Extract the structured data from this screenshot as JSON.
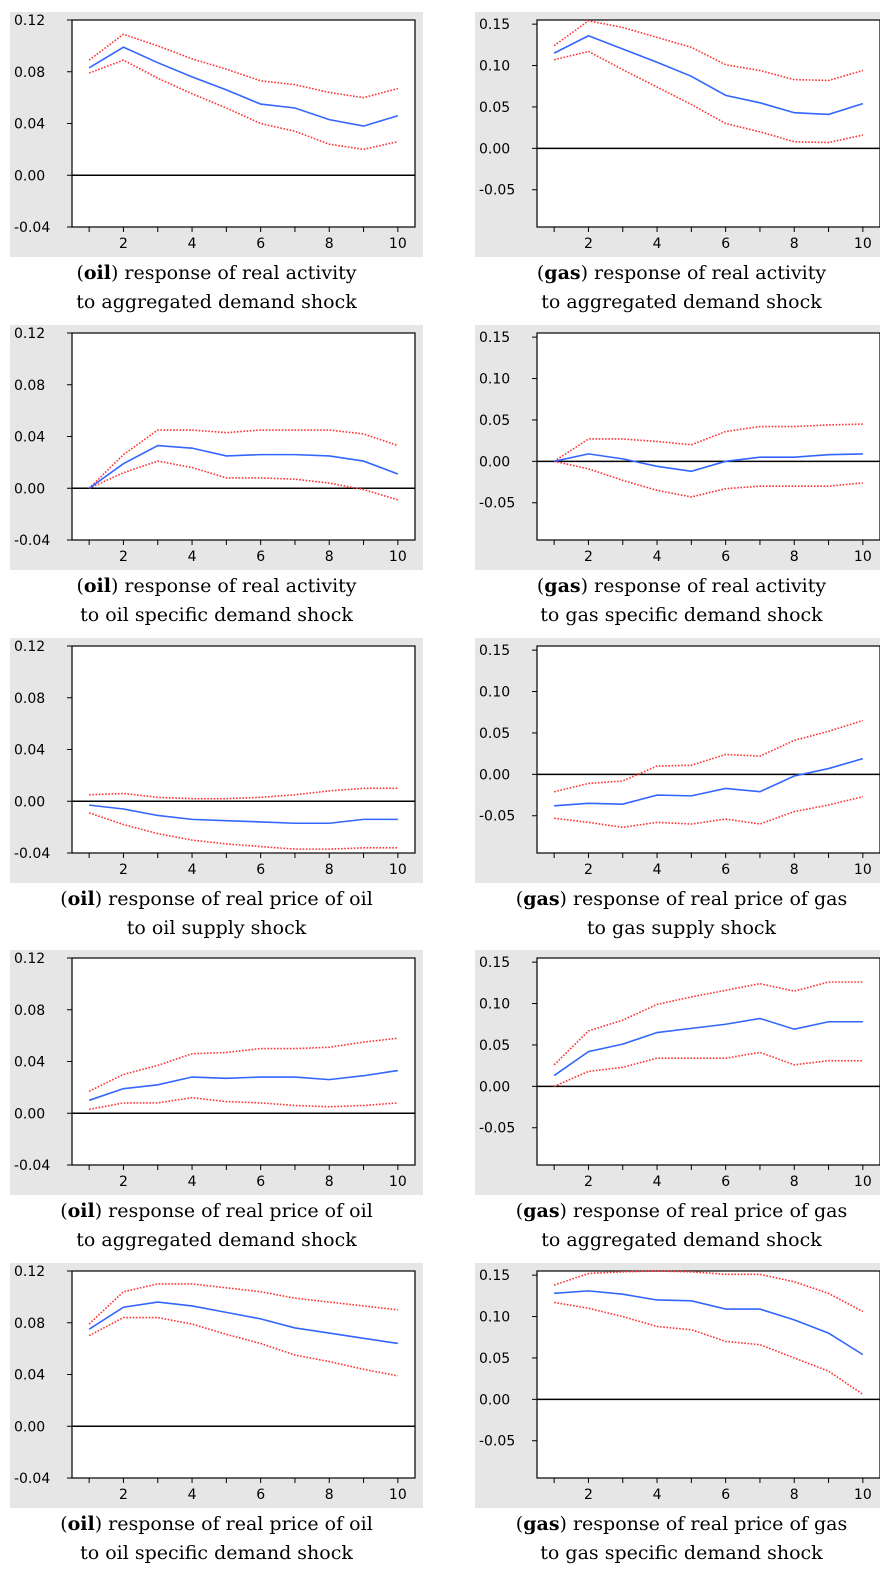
{
  "chart_data": [
    {
      "type": "line",
      "caption": {
        "shock_var": "oil",
        "line1_rest": ") response of real activity",
        "line2": "to aggregated demand shock"
      },
      "x": [
        1,
        2,
        3,
        4,
        5,
        6,
        7,
        8,
        9,
        10
      ],
      "xlim": [
        0.5,
        10.5
      ],
      "xticks": [
        "2",
        "4",
        "6",
        "8",
        "10"
      ],
      "ylim": [
        -0.04,
        0.12
      ],
      "yticks": [
        "0.12",
        "0.08",
        "0.04",
        "0.00",
        "-0.04"
      ],
      "series": [
        {
          "values": [
            0.083,
            0.099,
            0.087,
            0.076,
            0.066,
            0.055,
            0.052,
            0.043,
            0.038,
            0.046
          ],
          "color": "#3366ff",
          "style": "solid"
        },
        {
          "values": [
            0.089,
            0.109,
            0.1,
            0.09,
            0.082,
            0.073,
            0.07,
            0.064,
            0.06,
            0.067
          ],
          "color": "#ff3333",
          "style": "dotted"
        },
        {
          "values": [
            0.079,
            0.089,
            0.075,
            0.063,
            0.052,
            0.04,
            0.034,
            0.024,
            0.02,
            0.026
          ],
          "color": "#ff3333",
          "style": "dotted"
        }
      ]
    },
    {
      "type": "line",
      "caption": {
        "shock_var": "gas",
        "line1_rest": ") response of real activity",
        "line2": "to aggregated demand shock"
      },
      "x": [
        1,
        2,
        3,
        4,
        5,
        6,
        7,
        8,
        9,
        10
      ],
      "xlim": [
        0.5,
        10.5
      ],
      "xticks": [
        "2",
        "4",
        "6",
        "8",
        "10"
      ],
      "ylim": [
        -0.095,
        0.155
      ],
      "yticks": [
        "0.15",
        "0.10",
        "0.05",
        "0.00",
        "-0.05"
      ],
      "series": [
        {
          "values": [
            0.115,
            0.136,
            0.12,
            0.104,
            0.087,
            0.064,
            0.055,
            0.043,
            0.041,
            0.054
          ],
          "color": "#3366ff",
          "style": "solid"
        },
        {
          "values": [
            0.124,
            0.154,
            0.146,
            0.134,
            0.122,
            0.101,
            0.094,
            0.083,
            0.082,
            0.094
          ],
          "color": "#ff3333",
          "style": "dotted"
        },
        {
          "values": [
            0.107,
            0.117,
            0.095,
            0.074,
            0.053,
            0.03,
            0.02,
            0.008,
            0.007,
            0.016
          ],
          "color": "#ff3333",
          "style": "dotted"
        }
      ]
    },
    {
      "type": "line",
      "caption": {
        "shock_var": "oil",
        "line1_rest": ") response of real activity",
        "line2": "to oil specific demand shock"
      },
      "x": [
        1,
        2,
        3,
        4,
        5,
        6,
        7,
        8,
        9,
        10
      ],
      "xlim": [
        0.5,
        10.5
      ],
      "xticks": [
        "2",
        "4",
        "6",
        "8",
        "10"
      ],
      "ylim": [
        -0.04,
        0.12
      ],
      "yticks": [
        "0.12",
        "0.08",
        "0.04",
        "0.00",
        "-0.04"
      ],
      "series": [
        {
          "values": [
            0.0,
            0.019,
            0.033,
            0.031,
            0.025,
            0.026,
            0.026,
            0.025,
            0.021,
            0.011
          ],
          "color": "#3366ff",
          "style": "solid"
        },
        {
          "values": [
            0.0,
            0.026,
            0.045,
            0.045,
            0.043,
            0.045,
            0.045,
            0.045,
            0.042,
            0.033
          ],
          "color": "#ff3333",
          "style": "dotted"
        },
        {
          "values": [
            0.0,
            0.012,
            0.021,
            0.016,
            0.008,
            0.008,
            0.007,
            0.004,
            -0.001,
            -0.009
          ],
          "color": "#ff3333",
          "style": "dotted"
        }
      ]
    },
    {
      "type": "line",
      "caption": {
        "shock_var": "gas",
        "line1_rest": ") response of real activity",
        "line2": "to gas specific demand shock"
      },
      "x": [
        1,
        2,
        3,
        4,
        5,
        6,
        7,
        8,
        9,
        10
      ],
      "xlim": [
        0.5,
        10.5
      ],
      "xticks": [
        "2",
        "4",
        "6",
        "8",
        "10"
      ],
      "ylim": [
        -0.095,
        0.155
      ],
      "yticks": [
        "0.15",
        "0.10",
        "0.05",
        "0.00",
        "-0.05"
      ],
      "series": [
        {
          "values": [
            0.0,
            0.009,
            0.003,
            -0.006,
            -0.012,
            0.0,
            0.005,
            0.005,
            0.008,
            0.009
          ],
          "color": "#3366ff",
          "style": "solid"
        },
        {
          "values": [
            0.0,
            0.027,
            0.027,
            0.024,
            0.02,
            0.036,
            0.042,
            0.042,
            0.044,
            0.045
          ],
          "color": "#ff3333",
          "style": "dotted"
        },
        {
          "values": [
            0.0,
            -0.009,
            -0.023,
            -0.035,
            -0.043,
            -0.033,
            -0.03,
            -0.03,
            -0.03,
            -0.026
          ],
          "color": "#ff3333",
          "style": "dotted"
        }
      ]
    },
    {
      "type": "line",
      "caption": {
        "shock_var": "oil",
        "line1_rest": ") response of real price of oil",
        "line2": "to oil supply shock"
      },
      "x": [
        1,
        2,
        3,
        4,
        5,
        6,
        7,
        8,
        9,
        10
      ],
      "xlim": [
        0.5,
        10.5
      ],
      "xticks": [
        "2",
        "4",
        "6",
        "8",
        "10"
      ],
      "ylim": [
        -0.04,
        0.12
      ],
      "yticks": [
        "0.12",
        "0.08",
        "0.04",
        "0.00",
        "-0.04"
      ],
      "series": [
        {
          "values": [
            -0.003,
            -0.006,
            -0.011,
            -0.014,
            -0.015,
            -0.016,
            -0.017,
            -0.017,
            -0.014,
            -0.014
          ],
          "color": "#3366ff",
          "style": "solid"
        },
        {
          "values": [
            0.005,
            0.006,
            0.003,
            0.002,
            0.002,
            0.003,
            0.005,
            0.008,
            0.01,
            0.01
          ],
          "color": "#ff3333",
          "style": "dotted"
        },
        {
          "values": [
            -0.009,
            -0.018,
            -0.025,
            -0.03,
            -0.033,
            -0.035,
            -0.037,
            -0.037,
            -0.036,
            -0.036
          ],
          "color": "#ff3333",
          "style": "dotted"
        }
      ]
    },
    {
      "type": "line",
      "caption": {
        "shock_var": "gas",
        "line1_rest": ") response of real price of gas",
        "line2": "to gas supply shock"
      },
      "x": [
        1,
        2,
        3,
        4,
        5,
        6,
        7,
        8,
        9,
        10
      ],
      "xlim": [
        0.5,
        10.5
      ],
      "xticks": [
        "2",
        "4",
        "6",
        "8",
        "10"
      ],
      "ylim": [
        -0.095,
        0.155
      ],
      "yticks": [
        "0.15",
        "0.10",
        "0.05",
        "0.00",
        "-0.05"
      ],
      "series": [
        {
          "values": [
            -0.038,
            -0.035,
            -0.036,
            -0.025,
            -0.026,
            -0.017,
            -0.021,
            -0.002,
            0.007,
            0.019
          ],
          "color": "#3366ff",
          "style": "solid"
        },
        {
          "values": [
            -0.021,
            -0.011,
            -0.008,
            0.01,
            0.011,
            0.024,
            0.022,
            0.041,
            0.052,
            0.065
          ],
          "color": "#ff3333",
          "style": "dotted"
        },
        {
          "values": [
            -0.053,
            -0.058,
            -0.064,
            -0.058,
            -0.06,
            -0.054,
            -0.06,
            -0.045,
            -0.037,
            -0.027
          ],
          "color": "#ff3333",
          "style": "dotted"
        }
      ]
    },
    {
      "type": "line",
      "caption": {
        "shock_var": "oil",
        "line1_rest": ") response of real price of oil",
        "line2": "to aggregated demand shock"
      },
      "x": [
        1,
        2,
        3,
        4,
        5,
        6,
        7,
        8,
        9,
        10
      ],
      "xlim": [
        0.5,
        10.5
      ],
      "xticks": [
        "2",
        "4",
        "6",
        "8",
        "10"
      ],
      "ylim": [
        -0.04,
        0.12
      ],
      "yticks": [
        "0.12",
        "0.08",
        "0.04",
        "0.00",
        "-0.04"
      ],
      "series": [
        {
          "values": [
            0.01,
            0.019,
            0.022,
            0.028,
            0.027,
            0.028,
            0.028,
            0.026,
            0.029,
            0.033
          ],
          "color": "#3366ff",
          "style": "solid"
        },
        {
          "values": [
            0.017,
            0.03,
            0.037,
            0.046,
            0.047,
            0.05,
            0.05,
            0.051,
            0.055,
            0.058
          ],
          "color": "#ff3333",
          "style": "dotted"
        },
        {
          "values": [
            0.003,
            0.008,
            0.008,
            0.012,
            0.009,
            0.008,
            0.006,
            0.005,
            0.006,
            0.008
          ],
          "color": "#ff3333",
          "style": "dotted"
        }
      ]
    },
    {
      "type": "line",
      "caption": {
        "shock_var": "gas",
        "line1_rest": ") response of real price of gas",
        "line2": "to aggregated demand shock"
      },
      "x": [
        1,
        2,
        3,
        4,
        5,
        6,
        7,
        8,
        9,
        10
      ],
      "xlim": [
        0.5,
        10.5
      ],
      "xticks": [
        "2",
        "4",
        "6",
        "8",
        "10"
      ],
      "ylim": [
        -0.095,
        0.155
      ],
      "yticks": [
        "0.15",
        "0.10",
        "0.05",
        "0.00",
        "-0.05"
      ],
      "series": [
        {
          "values": [
            0.013,
            0.042,
            0.051,
            0.065,
            0.07,
            0.075,
            0.082,
            0.069,
            0.078,
            0.078
          ],
          "color": "#3366ff",
          "style": "solid"
        },
        {
          "values": [
            0.026,
            0.067,
            0.08,
            0.099,
            0.108,
            0.116,
            0.124,
            0.115,
            0.126,
            0.126
          ],
          "color": "#ff3333",
          "style": "dotted"
        },
        {
          "values": [
            0.0,
            0.018,
            0.023,
            0.034,
            0.034,
            0.034,
            0.041,
            0.026,
            0.031,
            0.031
          ],
          "color": "#ff3333",
          "style": "dotted"
        }
      ]
    },
    {
      "type": "line",
      "caption": {
        "shock_var": "oil",
        "line1_rest": ") response of real price of oil",
        "line2": "to oil specific demand shock"
      },
      "x": [
        1,
        2,
        3,
        4,
        5,
        6,
        7,
        8,
        9,
        10
      ],
      "xlim": [
        0.5,
        10.5
      ],
      "xticks": [
        "2",
        "4",
        "6",
        "8",
        "10"
      ],
      "ylim": [
        -0.04,
        0.12
      ],
      "yticks": [
        "0.12",
        "0.08",
        "0.04",
        "0.00",
        "-0.04"
      ],
      "series": [
        {
          "values": [
            0.075,
            0.092,
            0.096,
            0.093,
            0.088,
            0.083,
            0.076,
            0.072,
            0.068,
            0.064
          ],
          "color": "#3366ff",
          "style": "solid"
        },
        {
          "values": [
            0.079,
            0.104,
            0.11,
            0.11,
            0.107,
            0.104,
            0.099,
            0.096,
            0.093,
            0.09
          ],
          "color": "#ff3333",
          "style": "dotted"
        },
        {
          "values": [
            0.07,
            0.084,
            0.084,
            0.079,
            0.071,
            0.064,
            0.055,
            0.05,
            0.044,
            0.039
          ],
          "color": "#ff3333",
          "style": "dotted"
        }
      ]
    },
    {
      "type": "line",
      "caption": {
        "shock_var": "gas",
        "line1_rest": ") response of real price of gas",
        "line2": "to gas specific demand shock"
      },
      "x": [
        1,
        2,
        3,
        4,
        5,
        6,
        7,
        8,
        9,
        10
      ],
      "xlim": [
        0.5,
        10.5
      ],
      "xticks": [
        "2",
        "4",
        "6",
        "8",
        "10"
      ],
      "ylim": [
        -0.095,
        0.155
      ],
      "yticks": [
        "0.15",
        "0.10",
        "0.05",
        "0.00",
        "-0.05"
      ],
      "series": [
        {
          "values": [
            0.128,
            0.131,
            0.127,
            0.12,
            0.119,
            0.109,
            0.109,
            0.096,
            0.08,
            0.054
          ],
          "color": "#3366ff",
          "style": "solid"
        },
        {
          "values": [
            0.138,
            0.152,
            0.154,
            0.155,
            0.154,
            0.151,
            0.151,
            0.142,
            0.128,
            0.106
          ],
          "color": "#ff3333",
          "style": "dotted"
        },
        {
          "values": [
            0.117,
            0.11,
            0.1,
            0.088,
            0.084,
            0.07,
            0.066,
            0.05,
            0.034,
            0.006
          ],
          "color": "#ff3333",
          "style": "dotted"
        }
      ]
    }
  ]
}
